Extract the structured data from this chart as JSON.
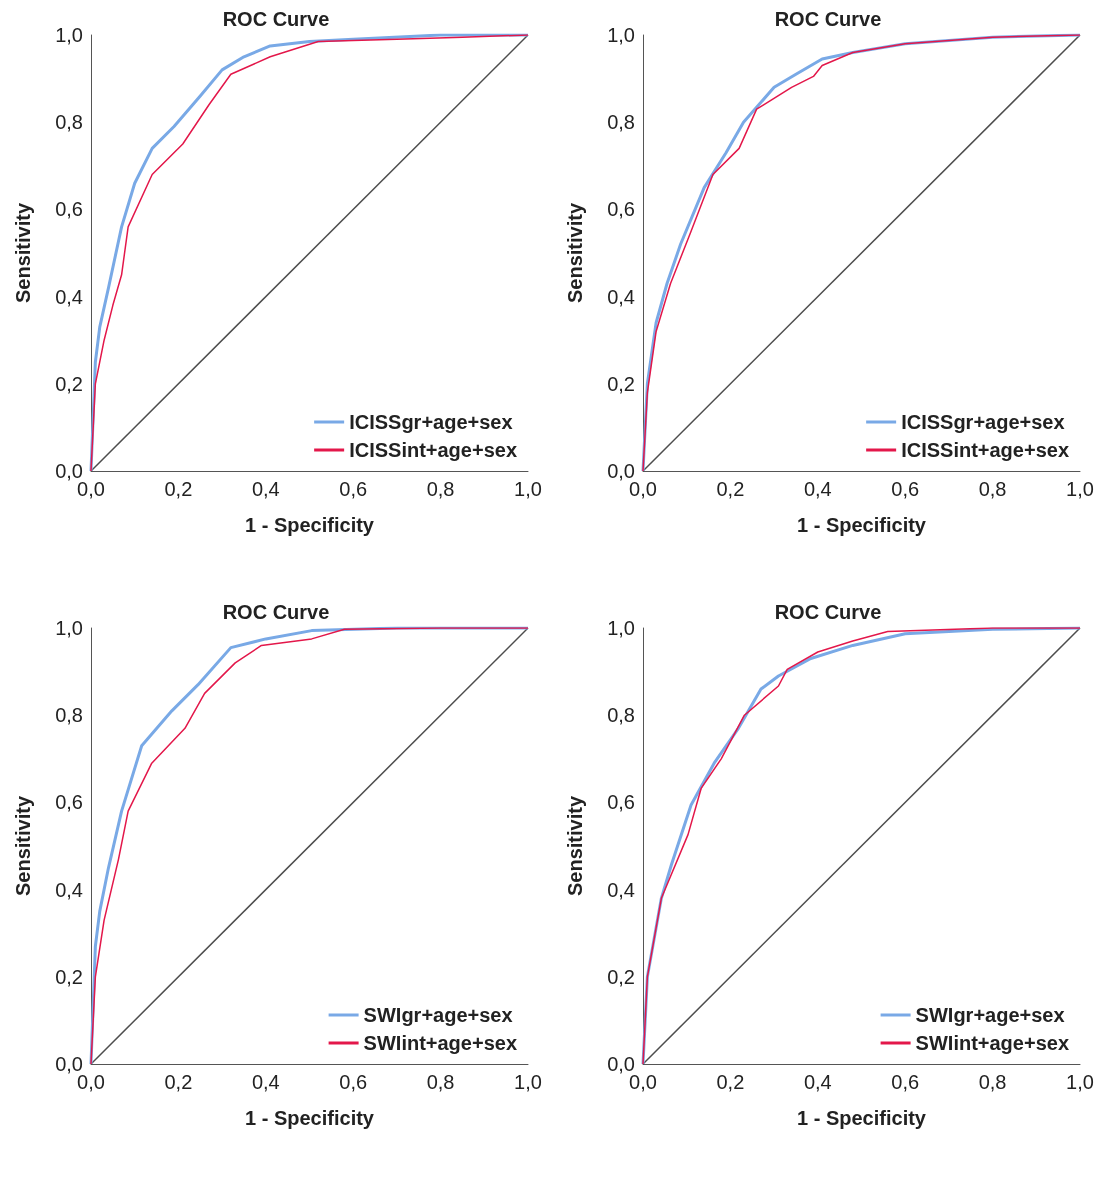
{
  "chart_data": [
    {
      "type": "line",
      "title": "ROC Curve",
      "xlabel": "1 - Specificity",
      "ylabel": "Sensitivity",
      "xlim": [
        0,
        1
      ],
      "ylim": [
        0,
        1
      ],
      "xticks": [
        {
          "value": 0,
          "label": "0,0"
        },
        {
          "value": 0.2,
          "label": "0,2"
        },
        {
          "value": 0.4,
          "label": "0,4"
        },
        {
          "value": 0.6,
          "label": "0,6"
        },
        {
          "value": 0.8,
          "label": "0,8"
        },
        {
          "value": 1,
          "label": "1,0"
        }
      ],
      "yticks": [
        {
          "value": 0,
          "label": "0,0"
        },
        {
          "value": 0.2,
          "label": "0,2"
        },
        {
          "value": 0.4,
          "label": "0,4"
        },
        {
          "value": 0.6,
          "label": "0,6"
        },
        {
          "value": 0.8,
          "label": "0,8"
        },
        {
          "value": 1,
          "label": "1,0"
        }
      ],
      "grid": false,
      "legend": "bottom right",
      "series": [
        {
          "name": "ICISSgr+age+sex",
          "color": "#79a9e6",
          "x": [
            0,
            0.01,
            0.02,
            0.04,
            0.07,
            0.1,
            0.14,
            0.19,
            0.25,
            0.3,
            0.35,
            0.41,
            0.5,
            0.6,
            0.8,
            1
          ],
          "values": [
            0,
            0.25,
            0.33,
            0.42,
            0.56,
            0.66,
            0.74,
            0.79,
            0.86,
            0.92,
            0.95,
            0.975,
            0.985,
            0.99,
            1,
            1
          ]
        },
        {
          "name": "ICISSint+age+sex",
          "color": "#e3174a",
          "x": [
            0,
            0.01,
            0.03,
            0.05,
            0.07,
            0.085,
            0.14,
            0.21,
            0.27,
            0.32,
            0.41,
            0.52,
            0.7,
            0.85,
            1
          ],
          "values": [
            0,
            0.2,
            0.3,
            0.38,
            0.45,
            0.56,
            0.68,
            0.75,
            0.84,
            0.91,
            0.95,
            0.985,
            0.99,
            0.995,
            1
          ]
        },
        {
          "color": "#4d4d4d",
          "x": [
            0,
            1
          ],
          "values": [
            0,
            1
          ]
        }
      ]
    },
    {
      "type": "line",
      "title": "ROC Curve",
      "xlabel": "1 - Specificity",
      "ylabel": "Sensitivity",
      "xlim": [
        0,
        1
      ],
      "ylim": [
        0,
        1
      ],
      "xticks": [
        {
          "value": 0,
          "label": "0,0"
        },
        {
          "value": 0.2,
          "label": "0,2"
        },
        {
          "value": 0.4,
          "label": "0,4"
        },
        {
          "value": 0.6,
          "label": "0,6"
        },
        {
          "value": 0.8,
          "label": "0,8"
        },
        {
          "value": 1,
          "label": "1,0"
        }
      ],
      "yticks": [
        {
          "value": 0,
          "label": "0,0"
        },
        {
          "value": 0.2,
          "label": "0,2"
        },
        {
          "value": 0.4,
          "label": "0,4"
        },
        {
          "value": 0.6,
          "label": "0,6"
        },
        {
          "value": 0.8,
          "label": "0,8"
        },
        {
          "value": 1,
          "label": "1,0"
        }
      ],
      "grid": false,
      "legend": "bottom right",
      "series": [
        {
          "name": "ICISSgr+age+sex",
          "color": "#79a9e6",
          "x": [
            0,
            0.01,
            0.03,
            0.055,
            0.086,
            0.14,
            0.19,
            0.23,
            0.3,
            0.35,
            0.41,
            0.48,
            0.6,
            0.8,
            1
          ],
          "values": [
            0,
            0.2,
            0.34,
            0.43,
            0.52,
            0.65,
            0.73,
            0.8,
            0.88,
            0.91,
            0.945,
            0.96,
            0.98,
            0.995,
            1
          ]
        },
        {
          "name": "ICISSint+age+sex",
          "color": "#e3174a",
          "x": [
            0,
            0.01,
            0.03,
            0.063,
            0.11,
            0.16,
            0.22,
            0.26,
            0.34,
            0.39,
            0.41,
            0.48,
            0.6,
            0.8,
            1
          ],
          "values": [
            0,
            0.18,
            0.32,
            0.43,
            0.55,
            0.68,
            0.74,
            0.83,
            0.88,
            0.905,
            0.93,
            0.96,
            0.98,
            0.995,
            1
          ]
        },
        {
          "color": "#4d4d4d",
          "x": [
            0,
            1
          ],
          "values": [
            0,
            1
          ]
        }
      ]
    },
    {
      "type": "line",
      "title": "ROC Curve",
      "xlabel": "1 - Specificity",
      "ylabel": "Sensitivity",
      "xlim": [
        0,
        1
      ],
      "ylim": [
        0,
        1
      ],
      "xticks": [
        {
          "value": 0,
          "label": "0,0"
        },
        {
          "value": 0.2,
          "label": "0,2"
        },
        {
          "value": 0.4,
          "label": "0,4"
        },
        {
          "value": 0.6,
          "label": "0,6"
        },
        {
          "value": 0.8,
          "label": "0,8"
        },
        {
          "value": 1,
          "label": "1,0"
        }
      ],
      "yticks": [
        {
          "value": 0,
          "label": "0,0"
        },
        {
          "value": 0.2,
          "label": "0,2"
        },
        {
          "value": 0.4,
          "label": "0,4"
        },
        {
          "value": 0.6,
          "label": "0,6"
        },
        {
          "value": 0.8,
          "label": "0,8"
        },
        {
          "value": 1,
          "label": "1,0"
        }
      ],
      "grid": false,
      "legend": "bottom right",
      "series": [
        {
          "name": "SWIgr+age+sex",
          "color": "#79a9e6",
          "x": [
            0,
            0.01,
            0.02,
            0.04,
            0.07,
            0.116,
            0.185,
            0.245,
            0.32,
            0.4,
            0.505,
            0.7,
            1
          ],
          "values": [
            0,
            0.27,
            0.35,
            0.45,
            0.58,
            0.73,
            0.81,
            0.87,
            0.955,
            0.975,
            0.994,
            1,
            1
          ]
        },
        {
          "name": "SWIint+age+sex",
          "color": "#e3174a",
          "x": [
            0,
            0.01,
            0.03,
            0.063,
            0.085,
            0.139,
            0.215,
            0.26,
            0.33,
            0.39,
            0.505,
            0.58,
            0.8,
            1
          ],
          "values": [
            0,
            0.2,
            0.33,
            0.47,
            0.58,
            0.69,
            0.77,
            0.85,
            0.92,
            0.96,
            0.975,
            0.997,
            1,
            1
          ]
        },
        {
          "color": "#4d4d4d",
          "x": [
            0,
            1
          ],
          "values": [
            0,
            1
          ]
        }
      ]
    },
    {
      "type": "line",
      "title": "ROC Curve",
      "xlabel": "1 - Specificity",
      "ylabel": "Sensitivity",
      "xlim": [
        0,
        1
      ],
      "ylim": [
        0,
        1
      ],
      "xticks": [
        {
          "value": 0,
          "label": "0,0"
        },
        {
          "value": 0.2,
          "label": "0,2"
        },
        {
          "value": 0.4,
          "label": "0,4"
        },
        {
          "value": 0.6,
          "label": "0,6"
        },
        {
          "value": 0.8,
          "label": "0,8"
        },
        {
          "value": 1,
          "label": "1,0"
        }
      ],
      "yticks": [
        {
          "value": 0,
          "label": "0,0"
        },
        {
          "value": 0.2,
          "label": "0,2"
        },
        {
          "value": 0.4,
          "label": "0,4"
        },
        {
          "value": 0.6,
          "label": "0,6"
        },
        {
          "value": 0.8,
          "label": "0,8"
        },
        {
          "value": 1,
          "label": "1,0"
        }
      ],
      "grid": false,
      "legend": "bottom right",
      "series": [
        {
          "name": "SWIgr+age+sex",
          "color": "#79a9e6",
          "x": [
            0,
            0.01,
            0.042,
            0.065,
            0.11,
            0.164,
            0.217,
            0.27,
            0.31,
            0.384,
            0.48,
            0.6,
            0.8,
            1
          ],
          "values": [
            0,
            0.2,
            0.38,
            0.457,
            0.594,
            0.692,
            0.768,
            0.86,
            0.89,
            0.93,
            0.96,
            0.987,
            0.997,
            1
          ]
        },
        {
          "name": "SWIint+age+sex",
          "color": "#e3174a",
          "x": [
            0,
            0.01,
            0.042,
            0.103,
            0.133,
            0.179,
            0.232,
            0.31,
            0.33,
            0.4,
            0.48,
            0.56,
            0.8,
            1
          ],
          "values": [
            0,
            0.2,
            0.38,
            0.526,
            0.632,
            0.7,
            0.8,
            0.867,
            0.905,
            0.945,
            0.97,
            0.992,
            1,
            1
          ]
        },
        {
          "color": "#4d4d4d",
          "x": [
            0,
            1
          ],
          "values": [
            0,
            1
          ]
        }
      ]
    }
  ]
}
